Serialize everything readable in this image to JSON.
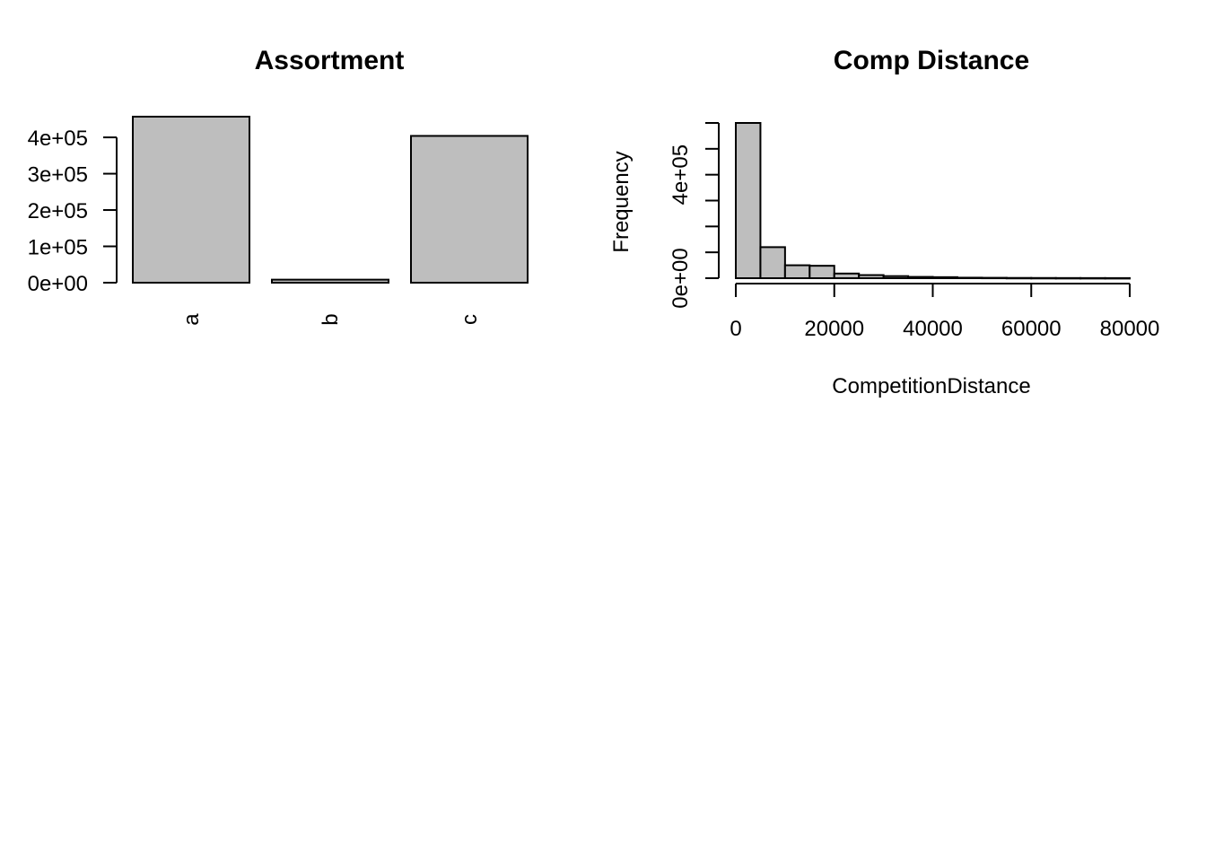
{
  "chart_data": [
    {
      "type": "bar",
      "title": "Assortment",
      "xlabel": "",
      "ylabel": "",
      "categories": [
        "a",
        "b",
        "c"
      ],
      "values": [
        457000,
        8300,
        404000
      ],
      "ylim": [
        0,
        457000
      ],
      "yticks": [
        0,
        100000,
        200000,
        300000,
        400000
      ],
      "ytick_labels": [
        "0e+00",
        "1e+05",
        "2e+05",
        "3e+05",
        "4e+05"
      ],
      "grid": false,
      "bar_color": "#bebebe"
    },
    {
      "type": "bar",
      "title": "Comp Distance",
      "xlabel": "CompetitionDistance",
      "ylabel": "Frequency",
      "bins": [
        {
          "x0": 0,
          "x1": 5000,
          "count": 600000
        },
        {
          "x0": 5000,
          "x1": 10000,
          "count": 120000
        },
        {
          "x0": 10000,
          "x1": 15000,
          "count": 50000
        },
        {
          "x0": 15000,
          "x1": 20000,
          "count": 48000
        },
        {
          "x0": 20000,
          "x1": 25000,
          "count": 18000
        },
        {
          "x0": 25000,
          "x1": 30000,
          "count": 12000
        },
        {
          "x0": 30000,
          "x1": 35000,
          "count": 8000
        },
        {
          "x0": 35000,
          "x1": 40000,
          "count": 5000
        },
        {
          "x0": 40000,
          "x1": 45000,
          "count": 4000
        },
        {
          "x0": 45000,
          "x1": 50000,
          "count": 2000
        },
        {
          "x0": 50000,
          "x1": 55000,
          "count": 1500
        },
        {
          "x0": 55000,
          "x1": 60000,
          "count": 1000
        },
        {
          "x0": 60000,
          "x1": 65000,
          "count": 800
        },
        {
          "x0": 65000,
          "x1": 70000,
          "count": 600
        },
        {
          "x0": 70000,
          "x1": 75000,
          "count": 500
        },
        {
          "x0": 75000,
          "x1": 80000,
          "count": 400
        }
      ],
      "xlim": [
        0,
        80000
      ],
      "ylim": [
        0,
        600000
      ],
      "xticks": [
        0,
        20000,
        40000,
        60000,
        80000
      ],
      "xtick_labels": [
        "0",
        "20000",
        "40000",
        "60000",
        "80000"
      ],
      "yticks": [
        0,
        100000,
        200000,
        300000,
        400000,
        500000,
        600000
      ],
      "ytick_labels": [
        "0e+00",
        "4e+05"
      ],
      "ytick_labeled_values": [
        0,
        400000
      ],
      "grid": false,
      "bar_color": "#bebebe"
    }
  ]
}
